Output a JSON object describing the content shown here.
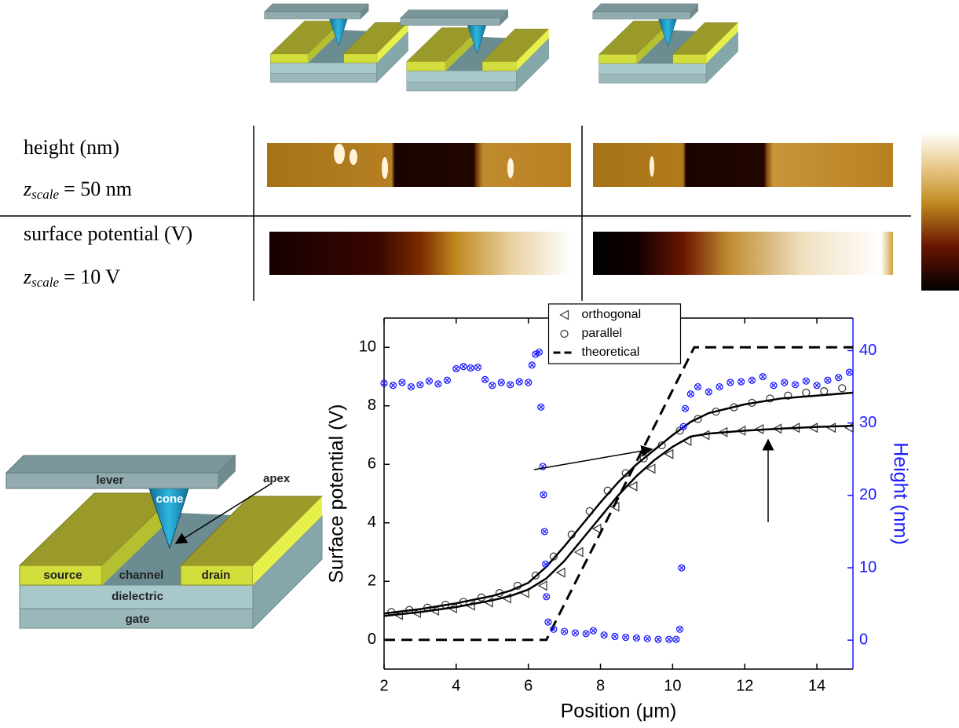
{
  "panels": {
    "rows": [
      {
        "label": "height (nm)",
        "scale": {
          "symbol": "z",
          "subscript": "scale",
          "value": "= 50 nm"
        }
      },
      {
        "label": "surface potential (V)",
        "scale": {
          "symbol": "z",
          "subscript": "scale",
          "value": "= 10 V"
        }
      }
    ]
  },
  "diagram": {
    "labels": [
      "lever",
      "cone",
      "apex",
      "source",
      "channel",
      "drain",
      "dielectric",
      "gate"
    ]
  },
  "chart_data": {
    "type": "line",
    "x_label": "Position (μm)",
    "y_label": "Surface potential (V)",
    "y2_label": "Height (nm)",
    "xlim": [
      2,
      15
    ],
    "xticks": [
      2,
      4,
      6,
      8,
      10,
      12,
      14
    ],
    "ylim": [
      -1,
      11
    ],
    "yticks": [
      0,
      2,
      4,
      6,
      8,
      10
    ],
    "y2lim": [
      -4,
      44.5
    ],
    "y2ticks": [
      0,
      10,
      20,
      30,
      40
    ],
    "y2_color": "#1a1aff",
    "legend": "top",
    "series": [
      {
        "name": "orthogonal",
        "style": "markers",
        "marker": "triangle-left",
        "color": "#333333",
        "x": [
          2.4,
          2.9,
          3.4,
          3.9,
          4.4,
          4.9,
          5.4,
          5.9,
          6.4,
          6.9,
          7.4,
          7.9,
          8.4,
          8.9,
          9.4,
          9.9,
          10.4,
          10.9,
          11.4,
          11.9,
          12.4,
          12.9,
          13.4,
          13.9,
          14.4,
          14.9
        ],
        "values": [
          0.85,
          0.92,
          1.0,
          1.08,
          1.17,
          1.28,
          1.42,
          1.6,
          1.85,
          2.3,
          3.0,
          3.8,
          4.55,
          5.25,
          5.85,
          6.35,
          6.8,
          7.0,
          7.1,
          7.15,
          7.2,
          7.22,
          7.25,
          7.25,
          7.25,
          7.25
        ]
      },
      {
        "name": "parallel",
        "style": "markers",
        "marker": "circle",
        "color": "#333333",
        "x": [
          2.2,
          2.7,
          3.2,
          3.7,
          4.2,
          4.7,
          5.2,
          5.7,
          6.2,
          6.7,
          7.2,
          7.7,
          8.2,
          8.7,
          9.2,
          9.7,
          10.2,
          10.7,
          11.2,
          11.7,
          12.2,
          12.7,
          13.2,
          13.7,
          14.2,
          14.7
        ],
        "values": [
          0.95,
          1.02,
          1.1,
          1.2,
          1.3,
          1.45,
          1.6,
          1.85,
          2.2,
          2.85,
          3.6,
          4.4,
          5.1,
          5.7,
          6.2,
          6.65,
          7.15,
          7.55,
          7.8,
          7.95,
          8.1,
          8.25,
          8.35,
          8.45,
          8.5,
          8.6
        ]
      },
      {
        "name": "theoretical",
        "style": "dashed",
        "color": "#000000",
        "x": [
          2,
          6.5,
          10.6,
          15
        ],
        "values": [
          0,
          0,
          10,
          10
        ]
      },
      {
        "style": "line",
        "color": "#000000",
        "x": [
          2,
          3,
          4,
          5,
          5.5,
          6,
          6.5,
          7,
          7.5,
          8,
          8.5,
          9,
          9.5,
          10,
          10.5,
          11,
          12,
          13,
          14,
          15
        ],
        "values": [
          0.9,
          1.05,
          1.25,
          1.5,
          1.68,
          1.95,
          2.5,
          3.2,
          3.95,
          4.7,
          5.4,
          6.0,
          6.5,
          7.0,
          7.45,
          7.75,
          8.05,
          8.25,
          8.35,
          8.45
        ]
      },
      {
        "style": "line",
        "color": "#000000",
        "x": [
          2,
          3,
          4,
          5,
          5.5,
          6,
          6.5,
          7,
          7.5,
          8,
          8.5,
          9,
          9.5,
          10,
          10.5,
          11,
          12,
          13,
          14,
          15
        ],
        "values": [
          0.82,
          0.95,
          1.12,
          1.35,
          1.5,
          1.72,
          2.1,
          2.7,
          3.45,
          4.2,
          4.95,
          5.6,
          6.15,
          6.6,
          6.95,
          7.05,
          7.15,
          7.22,
          7.28,
          7.32
        ]
      },
      {
        "style": "markers",
        "marker": "crossed-circle",
        "color": "#1a1aff",
        "axis": "y2",
        "x": [
          2.0,
          2.25,
          2.5,
          2.75,
          3.0,
          3.25,
          3.5,
          3.75,
          4.0,
          4.2,
          4.4,
          4.6,
          4.8,
          5.0,
          5.25,
          5.5,
          5.75,
          6.0,
          6.1,
          6.2,
          6.3,
          6.35,
          6.4,
          6.42,
          6.45,
          6.48,
          6.5,
          6.55,
          6.7,
          7.0,
          7.3,
          7.6,
          7.8,
          8.1,
          8.4,
          8.7,
          9.0,
          9.3,
          9.6,
          9.9,
          10.1,
          10.2,
          10.25,
          10.3,
          10.35,
          10.5,
          10.7,
          11.0,
          11.3,
          11.6,
          11.9,
          12.2,
          12.5,
          12.8,
          13.1,
          13.4,
          13.7,
          14.0,
          14.3,
          14.6,
          14.9
        ],
        "values": [
          35.5,
          35.2,
          35.6,
          35.0,
          35.3,
          35.8,
          35.4,
          35.9,
          37.5,
          37.8,
          37.6,
          37.7,
          36.0,
          35.2,
          35.6,
          35.3,
          35.7,
          35.6,
          38.0,
          39.5,
          39.8,
          32.2,
          24.0,
          20.1,
          15.0,
          10.5,
          6.0,
          2.5,
          1.5,
          1.2,
          1.0,
          0.9,
          1.3,
          0.7,
          0.5,
          0.4,
          0.3,
          0.2,
          0.1,
          0.1,
          0.1,
          1.5,
          10.0,
          29.5,
          32.0,
          34.0,
          35.0,
          34.3,
          35.0,
          35.6,
          35.7,
          35.9,
          36.4,
          35.2,
          35.6,
          35.3,
          35.8,
          35.2,
          35.9,
          36.3,
          37.0
        ]
      }
    ]
  }
}
